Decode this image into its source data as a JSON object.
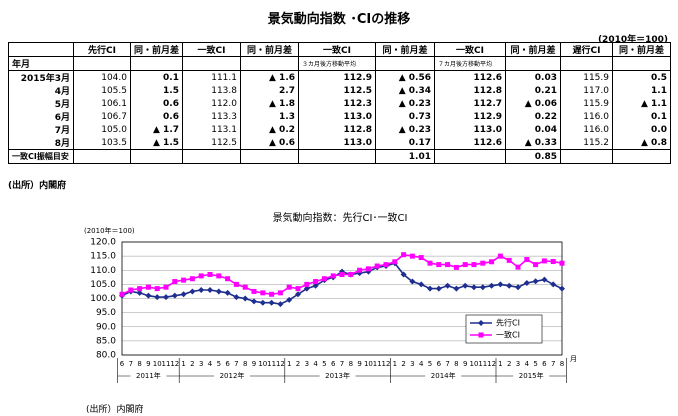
{
  "header": {
    "title": "景気動向指数 ･CIの推移",
    "unit": "(2010年＝100)"
  },
  "table": {
    "columns": [
      "先行CI",
      "同・前月差",
      "一致CI",
      "同・前月差",
      "一致CI",
      "同・前月差",
      "一致CI",
      "同・前月差",
      "遅行CI",
      "同・前月差"
    ],
    "corner": "年月",
    "notes": {
      "ma3": "３カ月後方移動平均",
      "ma7": "７カ月後方移動平均"
    },
    "rows": [
      [
        "2015年3月",
        "104.0",
        "0.1",
        "111.1",
        "▲ 1.6",
        "112.9",
        "▲ 0.56",
        "112.6",
        "0.03",
        "115.9",
        "0.5"
      ],
      [
        "4月",
        "105.5",
        "1.5",
        "113.8",
        "2.7",
        "112.5",
        "▲ 0.34",
        "112.8",
        "0.21",
        "117.0",
        "1.1"
      ],
      [
        "5月",
        "106.1",
        "0.6",
        "112.0",
        "▲ 1.8",
        "112.3",
        "▲ 0.23",
        "112.7",
        "▲ 0.06",
        "115.9",
        "▲ 1.1"
      ],
      [
        "6月",
        "106.7",
        "0.6",
        "113.3",
        "1.3",
        "113.0",
        "0.73",
        "112.9",
        "0.22",
        "116.0",
        "0.1"
      ],
      [
        "7月",
        "105.0",
        "▲ 1.7",
        "113.1",
        "▲ 0.2",
        "112.8",
        "▲ 0.23",
        "113.0",
        "0.04",
        "116.0",
        "0.0"
      ],
      [
        "8月",
        "103.5",
        "▲ 1.5",
        "112.5",
        "▲ 0.6",
        "113.0",
        "0.17",
        "112.6",
        "▲ 0.33",
        "115.2",
        "▲ 0.8"
      ]
    ],
    "footer": {
      "label": "一致CI振幅目安",
      "ma3": "1.01",
      "ma7": "0.85"
    }
  },
  "source": "(出所）内閣府",
  "chart_data": {
    "type": "line",
    "title": "景気動向指数：先行CI･一致CI",
    "y_label": "(2010年＝100)",
    "x_unit": "月",
    "categories": [
      "6",
      "7",
      "8",
      "9",
      "10",
      "11",
      "12",
      "1",
      "2",
      "3",
      "4",
      "5",
      "6",
      "7",
      "8",
      "9",
      "10",
      "11",
      "12",
      "1",
      "2",
      "3",
      "4",
      "5",
      "6",
      "7",
      "8",
      "9",
      "10",
      "11",
      "12",
      "1",
      "2",
      "3",
      "4",
      "5",
      "6",
      "7",
      "8",
      "9",
      "10",
      "11",
      "12",
      "1",
      "2",
      "3",
      "4",
      "5",
      "6",
      "7",
      "8"
    ],
    "years": [
      "2011年",
      "2012年",
      "2013年",
      "2014年",
      "2015年"
    ],
    "ylim": [
      80,
      120
    ],
    "yticks": [
      {
        "value": 80,
        "label": "80.0"
      },
      {
        "value": 85,
        "label": "85.0"
      },
      {
        "value": 90,
        "label": "90.0"
      },
      {
        "value": 95,
        "label": "95.0"
      },
      {
        "value": 100,
        "label": "100.0"
      },
      {
        "value": 105,
        "label": "105.0"
      },
      {
        "value": 110,
        "label": "110.0"
      },
      {
        "value": 115,
        "label": "115.0"
      },
      {
        "value": 120,
        "label": "120.0"
      }
    ],
    "grid": true,
    "legend": "lower-right",
    "series": [
      {
        "name": "先行CI",
        "color": "#1f2f8f",
        "marker": "diamond",
        "values": [
          101,
          102.5,
          102,
          101,
          100.5,
          100.5,
          101,
          101.5,
          102.5,
          103,
          103,
          102.5,
          102,
          100.5,
          100,
          99,
          98.5,
          98.5,
          98,
          99.5,
          101.5,
          103.5,
          104.5,
          106.5,
          107.5,
          109.5,
          108.5,
          109,
          109.5,
          111,
          111.5,
          112.5,
          108.5,
          106,
          105,
          103.5,
          103.5,
          104.5,
          103.5,
          104.5,
          104,
          104,
          104.5,
          105,
          104.5,
          104,
          105.5,
          106.1,
          106.7,
          105,
          103.5
        ]
      },
      {
        "name": "一致CI",
        "color": "#ff00ff",
        "marker": "square",
        "values": [
          101.5,
          103,
          103.5,
          104,
          103.5,
          104,
          106,
          106.5,
          107,
          108,
          108.5,
          108,
          107,
          105,
          104,
          102.5,
          102,
          101.5,
          102,
          104,
          103.5,
          105,
          106,
          107,
          108,
          108.5,
          108.5,
          110,
          110.5,
          111.5,
          112,
          113,
          115.5,
          115,
          114.5,
          112.5,
          112,
          112,
          111,
          112,
          112,
          112.5,
          113,
          115,
          113.5,
          111.1,
          113.8,
          112,
          113.3,
          113.1,
          112.5
        ]
      }
    ]
  }
}
